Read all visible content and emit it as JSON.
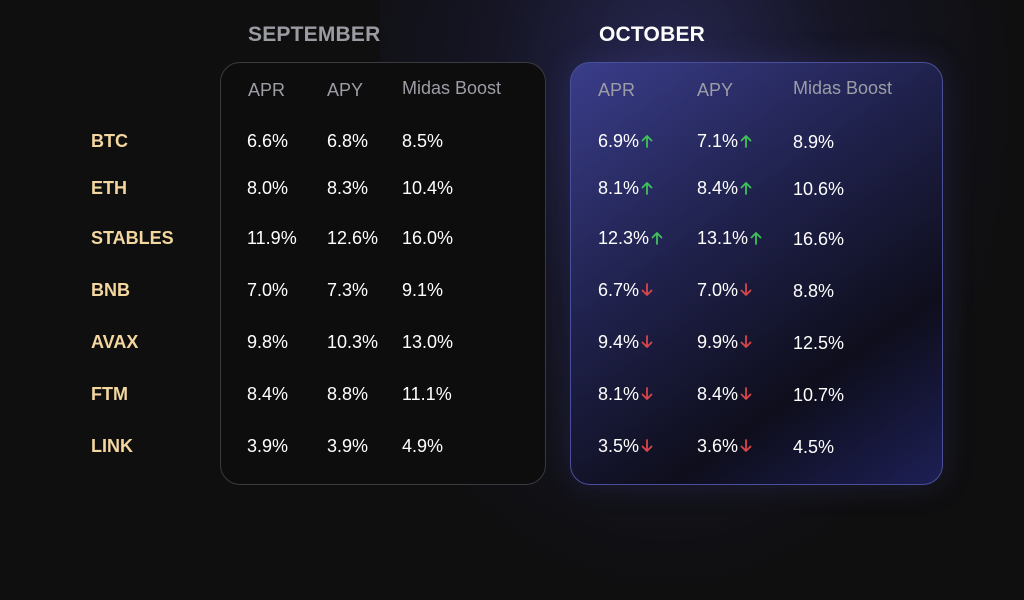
{
  "months": {
    "september": "SEPTEMBER",
    "october": "OCTOBER"
  },
  "columns": [
    "APR",
    "APY",
    "Midas Boost"
  ],
  "colors": {
    "asset_label": "#f3d79e",
    "up_arrow": "#3fc25a",
    "down_arrow": "#d9454a"
  },
  "rows": [
    {
      "asset": "BTC",
      "sep": {
        "apr": "6.6%",
        "apy": "6.8%",
        "boost": "8.5%"
      },
      "oct": {
        "apr": "6.9%",
        "apy": "7.1%",
        "boost": "8.9%",
        "apr_trend": "up",
        "apy_trend": "up"
      }
    },
    {
      "asset": "ETH",
      "sep": {
        "apr": "8.0%",
        "apy": "8.3%",
        "boost": "10.4%"
      },
      "oct": {
        "apr": "8.1%",
        "apy": "8.4%",
        "boost": "10.6%",
        "apr_trend": "up",
        "apy_trend": "up"
      }
    },
    {
      "asset": "STABLES",
      "sep": {
        "apr": "11.9%",
        "apy": "12.6%",
        "boost": "16.0%"
      },
      "oct": {
        "apr": "12.3%",
        "apy": "13.1%",
        "boost": "16.6%",
        "apr_trend": "up",
        "apy_trend": "up"
      }
    },
    {
      "asset": "BNB",
      "sep": {
        "apr": "7.0%",
        "apy": "7.3%",
        "boost": "9.1%"
      },
      "oct": {
        "apr": "6.7%",
        "apy": "7.0%",
        "boost": "8.8%",
        "apr_trend": "down",
        "apy_trend": "down"
      }
    },
    {
      "asset": "AVAX",
      "sep": {
        "apr": "9.8%",
        "apy": "10.3%",
        "boost": "13.0%"
      },
      "oct": {
        "apr": "9.4%",
        "apy": "9.9%",
        "boost": "12.5%",
        "apr_trend": "down",
        "apy_trend": "down"
      }
    },
    {
      "asset": "FTM",
      "sep": {
        "apr": "8.4%",
        "apy": "8.8%",
        "boost": "11.1%"
      },
      "oct": {
        "apr": "8.1%",
        "apy": "8.4%",
        "boost": "10.7%",
        "apr_trend": "down",
        "apy_trend": "down"
      }
    },
    {
      "asset": "LINK",
      "sep": {
        "apr": "3.9%",
        "apy": "3.9%",
        "boost": "4.9%"
      },
      "oct": {
        "apr": "3.5%",
        "apy": "3.6%",
        "boost": "4.5%",
        "apr_trend": "down",
        "apy_trend": "down"
      }
    }
  ]
}
